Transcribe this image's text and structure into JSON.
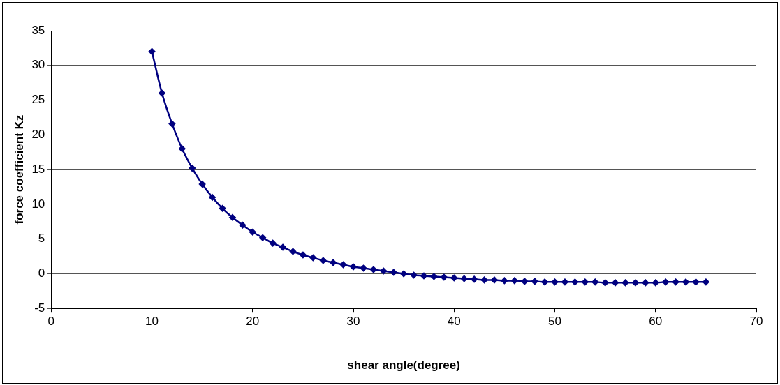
{
  "chart_data": {
    "type": "line",
    "xlabel": "shear angle(degree)",
    "ylabel": "force coefficient Kz",
    "x": [
      10,
      11,
      12,
      13,
      14,
      15,
      16,
      17,
      18,
      19,
      20,
      21,
      22,
      23,
      24,
      25,
      26,
      27,
      28,
      29,
      30,
      31,
      32,
      33,
      34,
      35,
      36,
      37,
      38,
      39,
      40,
      41,
      42,
      43,
      44,
      45,
      46,
      47,
      48,
      49,
      50,
      51,
      52,
      53,
      54,
      55,
      56,
      57,
      58,
      59,
      60,
      61,
      62,
      63,
      64,
      65
    ],
    "series": [
      {
        "color": "#000080",
        "values": [
          32,
          26,
          21.6,
          18,
          15.2,
          12.9,
          11,
          9.4,
          8.1,
          7,
          6,
          5.2,
          4.4,
          3.8,
          3.2,
          2.7,
          2.3,
          1.9,
          1.6,
          1.3,
          1,
          0.8,
          0.6,
          0.4,
          0.2,
          0,
          -0.2,
          -0.3,
          -0.4,
          -0.5,
          -0.6,
          -0.7,
          -0.8,
          -0.9,
          -0.9,
          -1,
          -1,
          -1.1,
          -1.1,
          -1.2,
          -1.2,
          -1.2,
          -1.2,
          -1.2,
          -1.2,
          -1.3,
          -1.3,
          -1.3,
          -1.3,
          -1.3,
          -1.3,
          -1.2,
          -1.2,
          -1.2,
          -1.2,
          -1.2
        ]
      }
    ],
    "xlim": [
      0,
      70
    ],
    "xticks": [
      0,
      10,
      20,
      30,
      40,
      50,
      60,
      70
    ],
    "ylim": [
      -5,
      35
    ],
    "yticks": [
      -5,
      0,
      5,
      10,
      15,
      20,
      25,
      30,
      35
    ],
    "grid": "y",
    "legend": false,
    "marker": "diamond",
    "line_style": "solid"
  }
}
